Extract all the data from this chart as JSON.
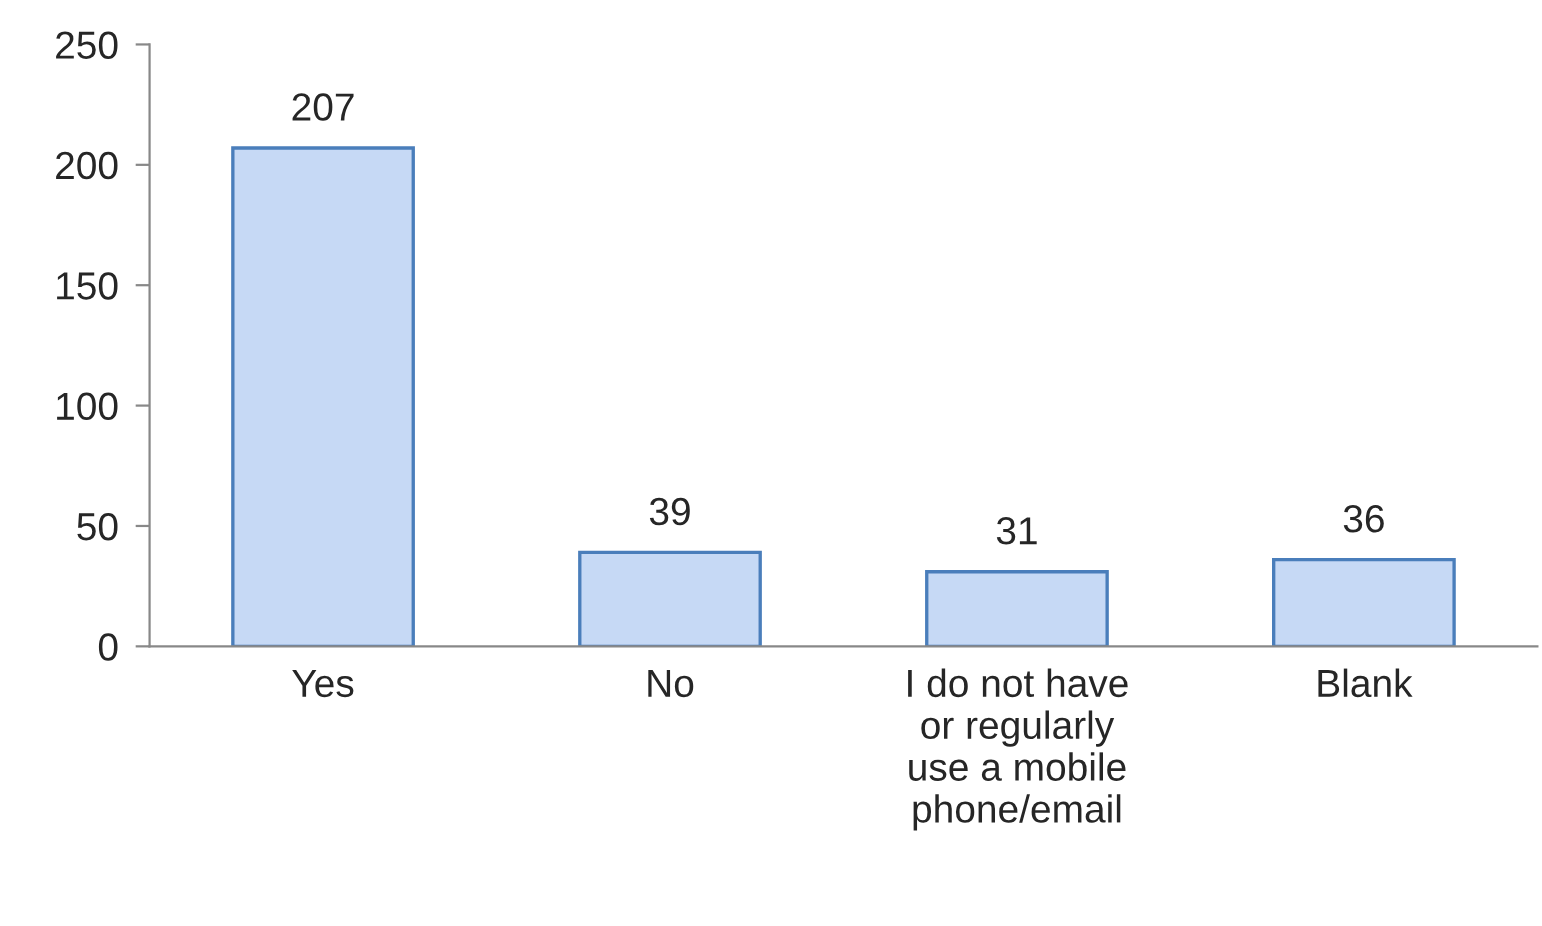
{
  "chart_data": {
    "type": "bar",
    "categories": [
      "Yes",
      "No",
      "I do not have\nor regularly\nuse a mobile\nphone/email",
      "Blank"
    ],
    "values": [
      207,
      39,
      31,
      36
    ],
    "color": "#c6d9f5",
    "ylim": [
      0,
      250
    ],
    "yticks": [
      0,
      50,
      100,
      150,
      200,
      250
    ],
    "grid": false,
    "data_labels": true
  }
}
